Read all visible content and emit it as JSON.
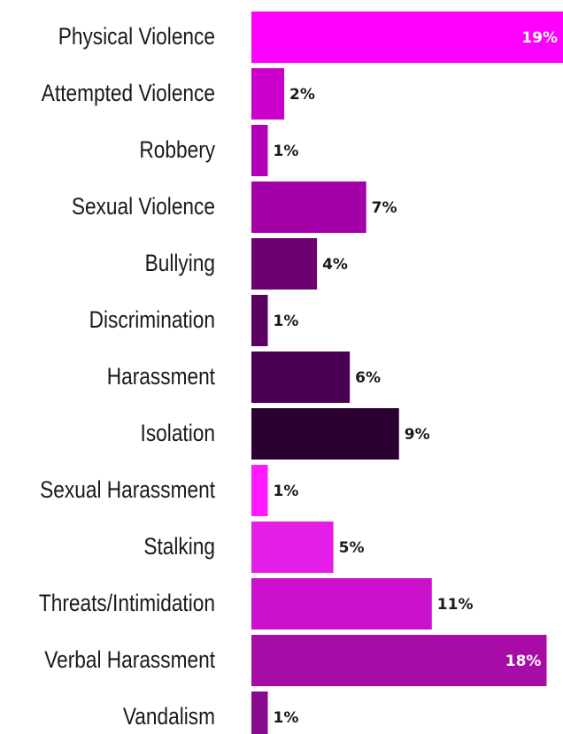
{
  "chart_data": {
    "type": "bar",
    "orientation": "horizontal",
    "categories": [
      "Physical Violence",
      "Attempted Violence",
      "Robbery",
      "Sexual Violence",
      "Bullying",
      "Discrimination",
      "Harassment",
      "Isolation",
      "Sexual Harassment",
      "Stalking",
      "Threats/Intimidation",
      "Verbal Harassment",
      "Vandalism"
    ],
    "values": [
      19,
      2,
      1,
      7,
      4,
      1,
      6,
      9,
      1,
      5,
      11,
      18,
      1
    ],
    "value_labels": [
      "19%",
      "2%",
      "1%",
      "7%",
      "4%",
      "1%",
      "6%",
      "9%",
      "1%",
      "5%",
      "11%",
      "18%",
      "1%"
    ],
    "colors": [
      "#ff00ff",
      "#cc00cc",
      "#b000b8",
      "#a400a8",
      "#6d0070",
      "#5a0060",
      "#4a0052",
      "#2a0030",
      "#ff1aff",
      "#e41ee6",
      "#cc11cc",
      "#a80ca8",
      "#8a0a8e"
    ],
    "inside_label_color": "#ffffff",
    "outside_label_color": "#1a1a1a",
    "title": "",
    "xlabel": "",
    "ylabel": "",
    "xlim": [
      0,
      19
    ],
    "grid": false,
    "legend": "none"
  }
}
